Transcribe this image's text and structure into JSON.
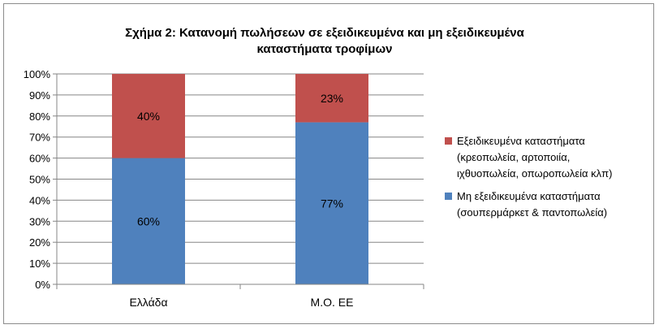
{
  "chart_data": {
    "type": "bar",
    "stacked": true,
    "title_lines": [
      "Σχήμα 2: Κατανομή πωλήσεων σε εξειδικευμένα και μη εξειδικευμένα",
      "καταστήματα τροφίμων"
    ],
    "categories": [
      "Ελλάδα",
      "Μ.Ο. ΕΕ"
    ],
    "series": [
      {
        "name_lines": [
          "Μη εξειδικευμένα καταστήματα",
          "(σουπερμάρκετ & παντοπωλεία)"
        ],
        "values": [
          60,
          77
        ],
        "labels": [
          "60%",
          "77%"
        ],
        "color": "#4f81bd"
      },
      {
        "name_lines": [
          "Εξειδικευμένα καταστήματα",
          "(κρεοπωλεία, αρτοποιία,",
          "ιχθυοπωλεία, οπωροπωλεία κλπ)"
        ],
        "values": [
          40,
          23
        ],
        "labels": [
          "40%",
          "23%"
        ],
        "color": "#c0504d"
      }
    ],
    "ylim": [
      0,
      100
    ],
    "yticks": [
      "0%",
      "10%",
      "20%",
      "30%",
      "40%",
      "50%",
      "60%",
      "70%",
      "80%",
      "90%",
      "100%"
    ],
    "grid": true,
    "legend_position": "right"
  }
}
